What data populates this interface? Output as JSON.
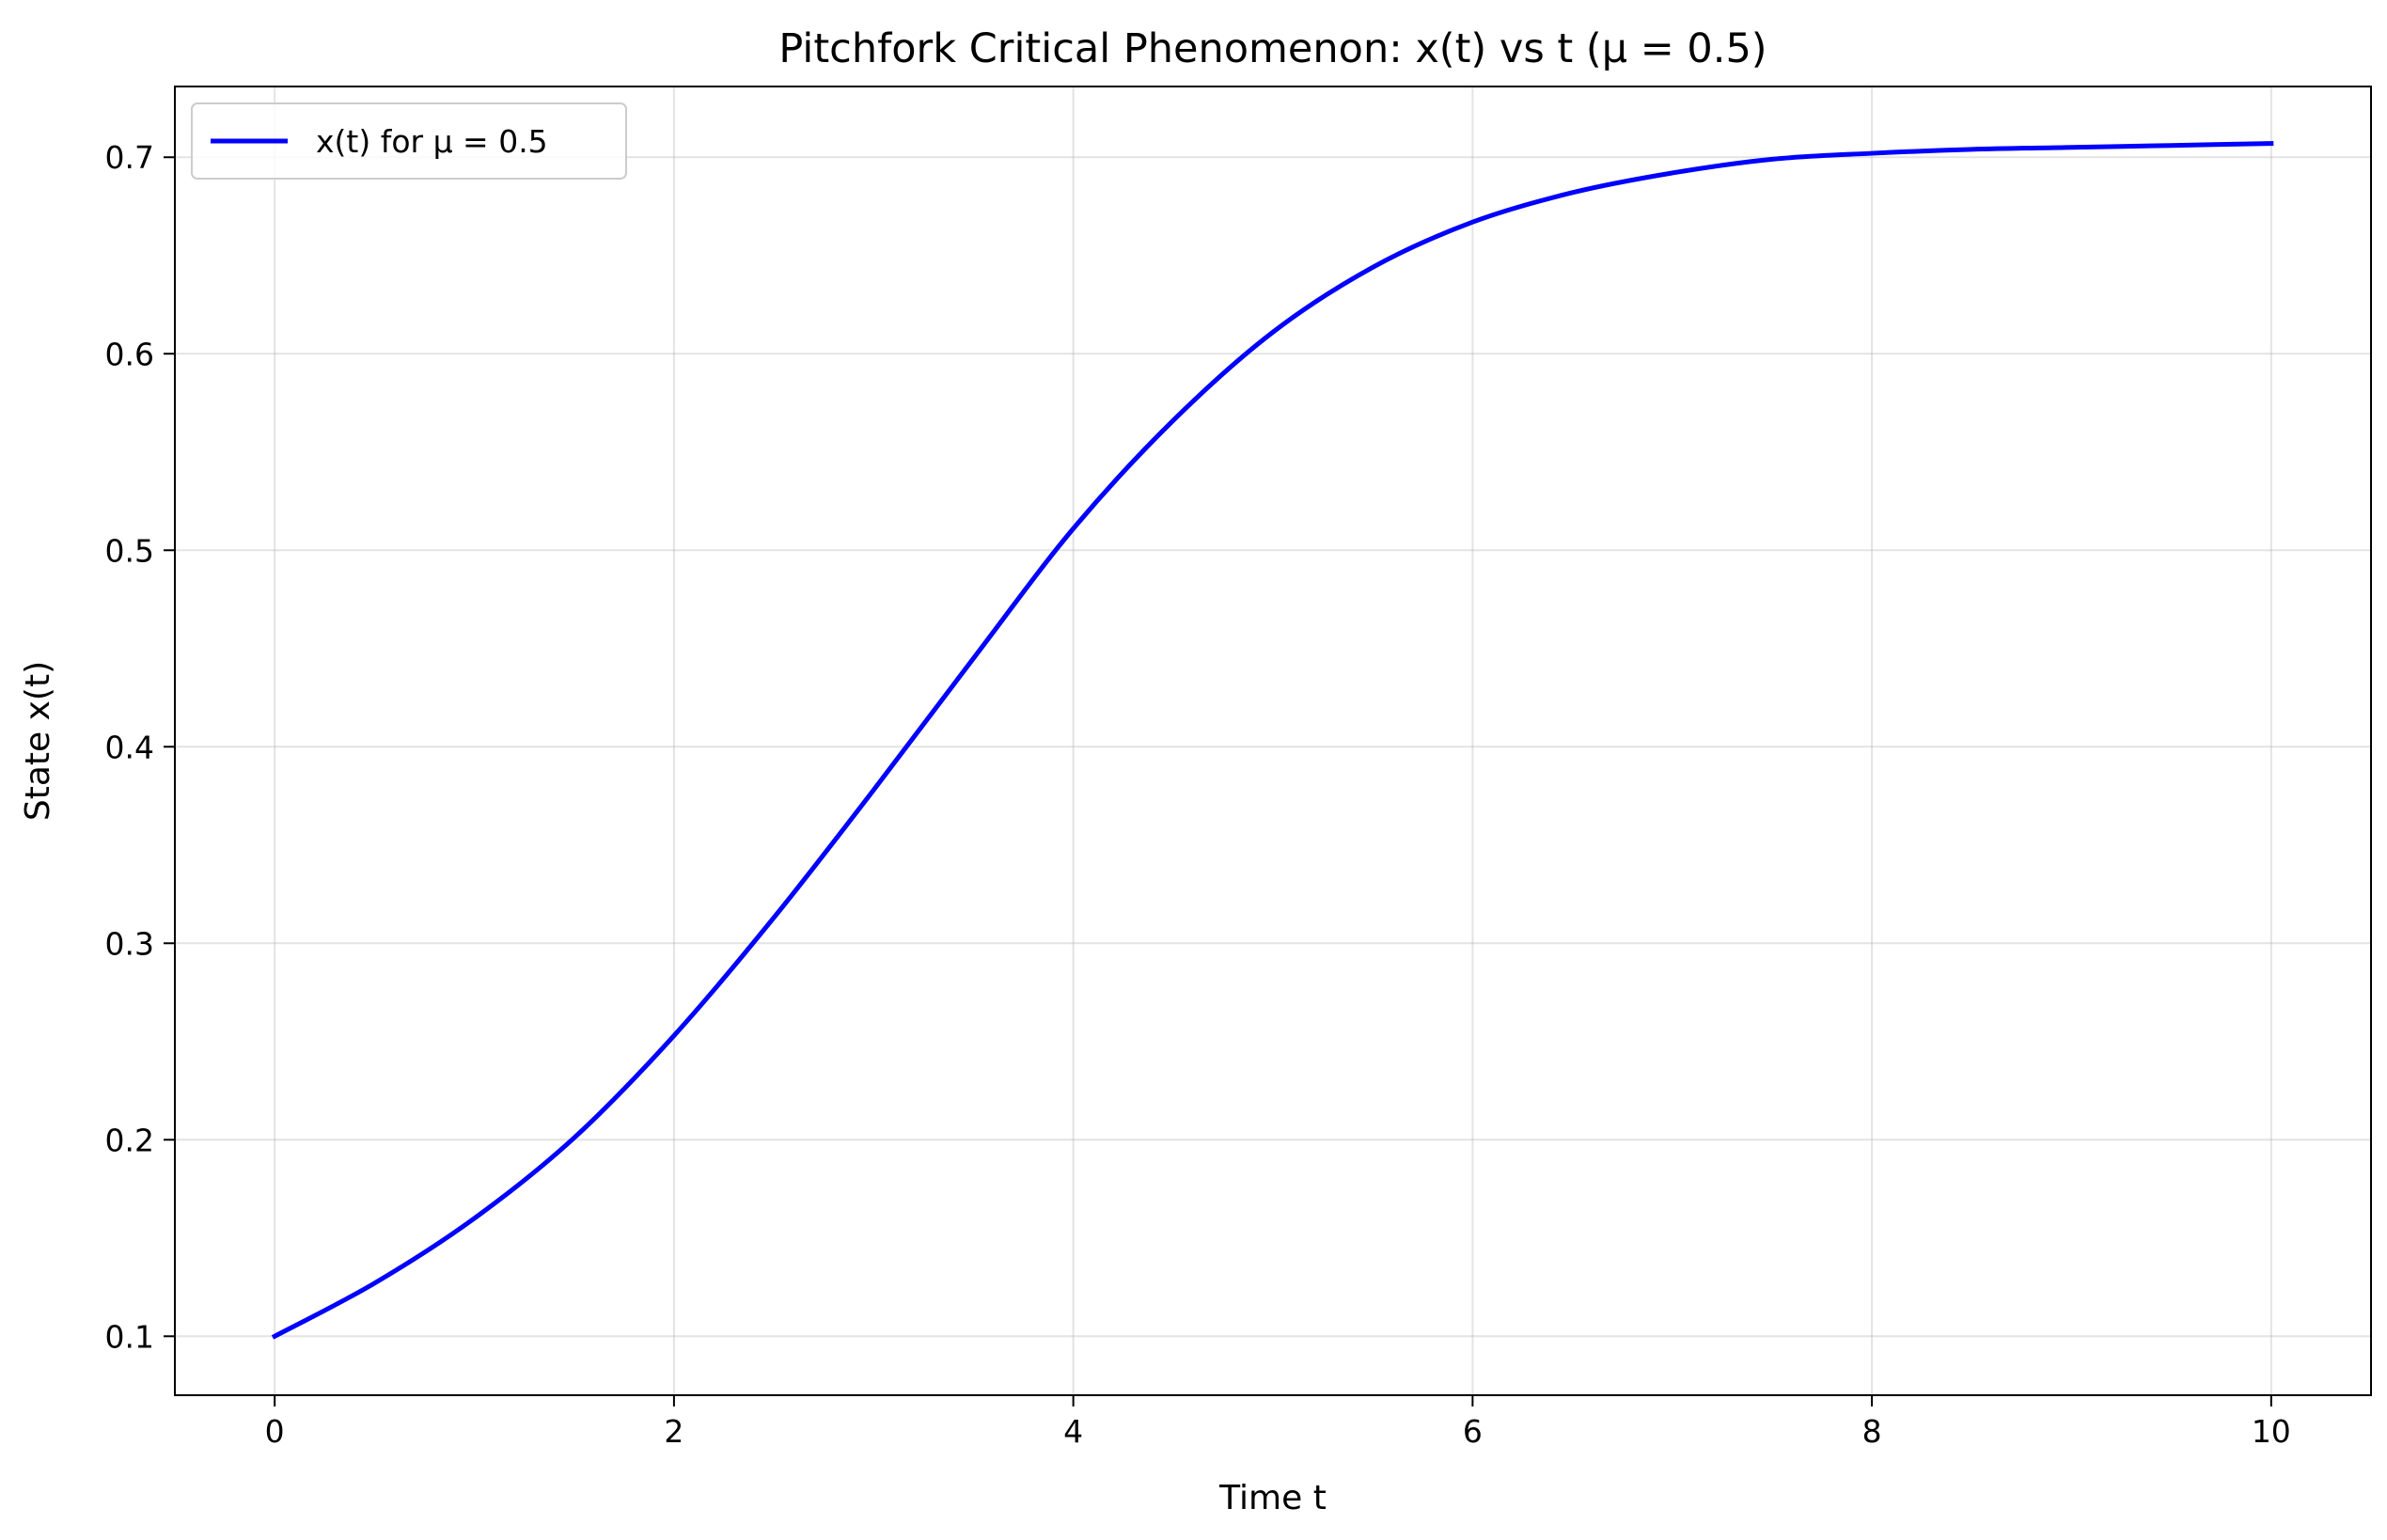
{
  "chart_data": {
    "type": "line",
    "title": "Pitchfork Critical Phenomenon: x(t) vs t (μ = 0.5)",
    "xlabel": "Time t",
    "ylabel": "State x(t)",
    "xlim": [
      -0.5,
      10.5
    ],
    "ylim": [
      0.07,
      0.736
    ],
    "xticks": [
      0,
      2,
      4,
      6,
      8,
      10
    ],
    "xtick_labels": [
      "0",
      "2",
      "4",
      "6",
      "8",
      "10"
    ],
    "yticks": [
      0.1,
      0.2,
      0.3,
      0.4,
      0.5,
      0.6,
      0.7
    ],
    "ytick_labels": [
      "0.1",
      "0.2",
      "0.3",
      "0.4",
      "0.5",
      "0.6",
      "0.7"
    ],
    "grid": true,
    "legend_position": "upper left",
    "series": [
      {
        "name": "x(t) for μ = 0.5",
        "color": "#0000ff",
        "x": [
          0,
          0.5,
          1,
          1.5,
          2,
          2.5,
          3,
          3.5,
          4,
          4.5,
          5,
          5.5,
          6,
          6.5,
          7,
          7.5,
          8,
          8.5,
          9,
          9.5,
          10
        ],
        "y": [
          0.1,
          0.127,
          0.16,
          0.201,
          0.253,
          0.313,
          0.378,
          0.445,
          0.511,
          0.566,
          0.611,
          0.644,
          0.667,
          0.682,
          0.692,
          0.699,
          0.702,
          0.704,
          0.705,
          0.706,
          0.707
        ]
      }
    ]
  }
}
